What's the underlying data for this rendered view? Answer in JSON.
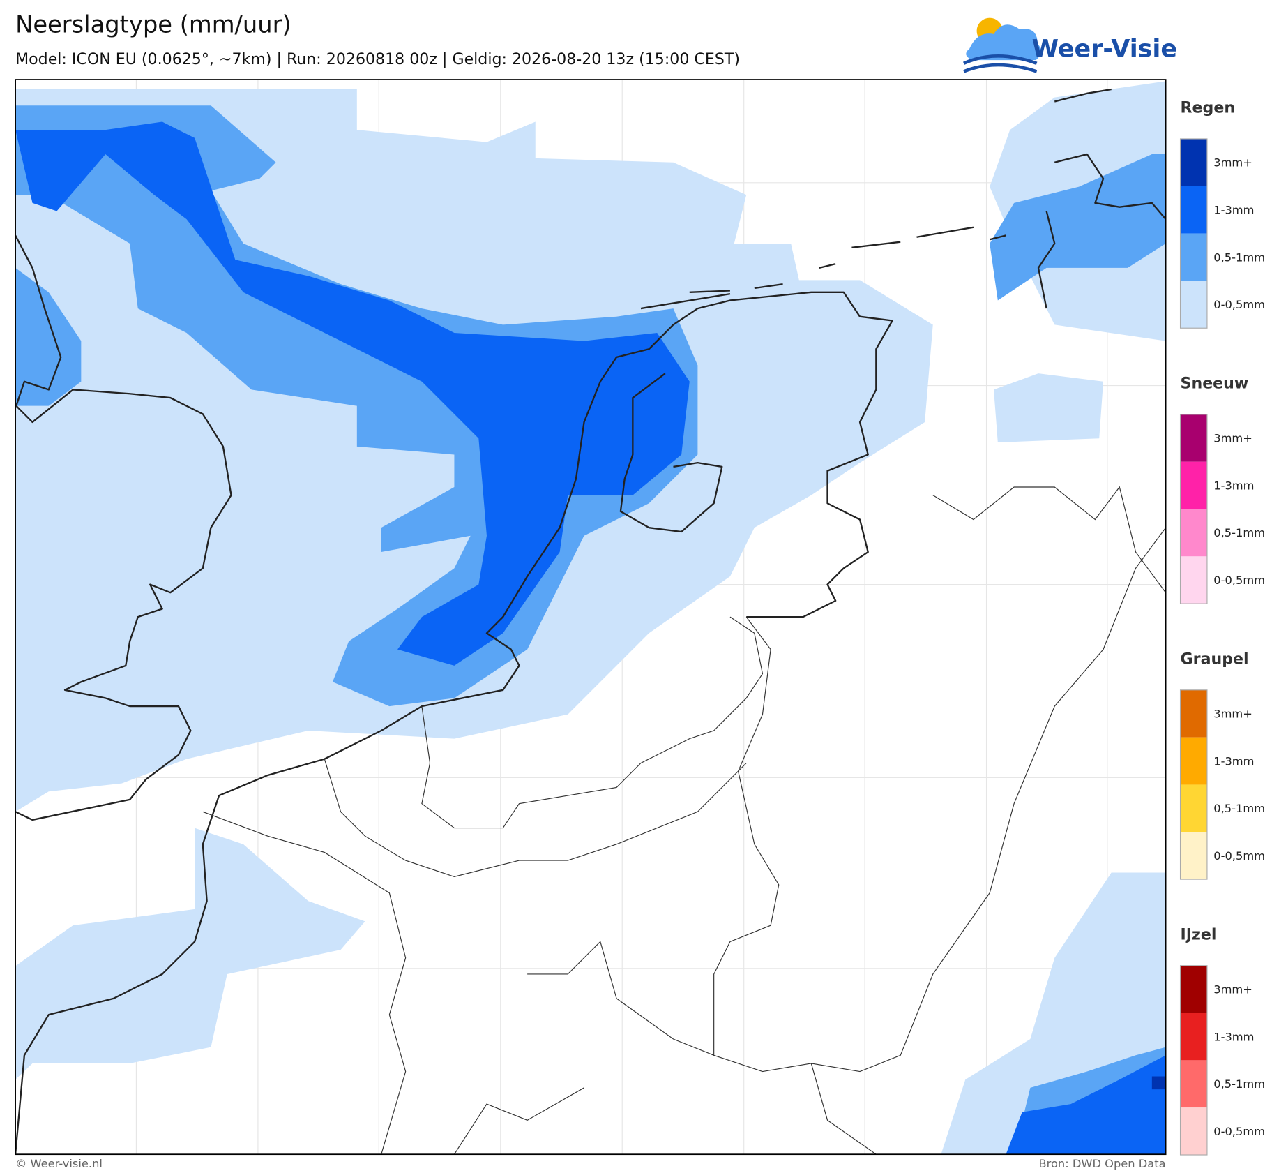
{
  "header": {
    "title": "Neerslagtype (mm/uur)",
    "subtitle": "Model: ICON EU (0.0625°, ~7km)  |  Run: 20260818 00z  |  Geldig: 2026-08-20 13z (15:00 CEST)"
  },
  "logo": {
    "text": "Weer-Visie"
  },
  "legend": {
    "groups": [
      {
        "name": "Regen",
        "items": [
          {
            "label": "3mm+",
            "color": "#0033b0"
          },
          {
            "label": "1-3mm",
            "color": "#0a64f5"
          },
          {
            "label": "0,5-1mm",
            "color": "#5aa5f5"
          },
          {
            "label": "0-0,5mm",
            "color": "#cce3fb"
          }
        ]
      },
      {
        "name": "Sneeuw",
        "items": [
          {
            "label": "3mm+",
            "color": "#a8006e"
          },
          {
            "label": "1-3mm",
            "color": "#ff22a8"
          },
          {
            "label": "0,5-1mm",
            "color": "#ff88cc"
          },
          {
            "label": "0-0,5mm",
            "color": "#ffd6ee"
          }
        ]
      },
      {
        "name": "Graupel",
        "items": [
          {
            "label": "3mm+",
            "color": "#e06a00"
          },
          {
            "label": "1-3mm",
            "color": "#ffaa00"
          },
          {
            "label": "0,5-1mm",
            "color": "#ffd633"
          },
          {
            "label": "0-0,5mm",
            "color": "#fff2c8"
          }
        ]
      },
      {
        "name": "IJzel",
        "items": [
          {
            "label": "3mm+",
            "color": "#a00000"
          },
          {
            "label": "1-3mm",
            "color": "#e82020"
          },
          {
            "label": "0,5-1mm",
            "color": "#ff6a6a"
          },
          {
            "label": "0-0,5mm",
            "color": "#ffd0d0"
          }
        ]
      }
    ]
  },
  "footer": {
    "copyright": "© Weer-visie.nl",
    "source": "Bron: DWD Open Data"
  }
}
